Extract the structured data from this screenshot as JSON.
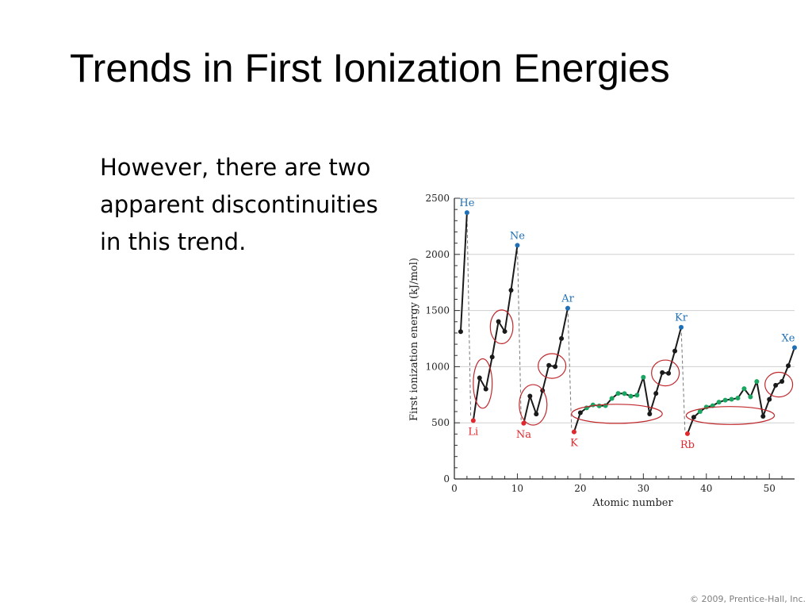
{
  "slide": {
    "title": "Trends in First Ionization Energies",
    "body": "However, there are two apparent discontinuities in this trend.",
    "copyright": "© 2009, Prentice-Hall, Inc."
  },
  "chart_data": {
    "type": "line",
    "xlabel": "Atomic number",
    "ylabel": "First ionization energy (kJ/mol)",
    "xlim": [
      0,
      54
    ],
    "ylim": [
      0,
      2500
    ],
    "xticks": [
      0,
      10,
      20,
      30,
      40,
      50
    ],
    "yticks": [
      0,
      500,
      1000,
      1500,
      2000,
      2500
    ],
    "grid": true,
    "series": [
      {
        "x": [
          1,
          2,
          3,
          4,
          5,
          6,
          7,
          8,
          9,
          10,
          11,
          12,
          13,
          14,
          15,
          16,
          17,
          18,
          19,
          20,
          21,
          22,
          23,
          24,
          25,
          26,
          27,
          28,
          29,
          30,
          31,
          32,
          33,
          34,
          35,
          36,
          37,
          38,
          39,
          40,
          41,
          42,
          43,
          44,
          45,
          46,
          47,
          48,
          49,
          50,
          51,
          52,
          53,
          54
        ],
        "y": [
          1312,
          2372,
          520,
          900,
          801,
          1086,
          1402,
          1314,
          1681,
          2081,
          496,
          738,
          578,
          787,
          1012,
          1000,
          1251,
          1521,
          419,
          590,
          633,
          659,
          651,
          653,
          717,
          762,
          760,
          737,
          746,
          906,
          579,
          762,
          947,
          941,
          1140,
          1351,
          403,
          550,
          600,
          640,
          652,
          684,
          702,
          710,
          720,
          804,
          731,
          868,
          558,
          709,
          834,
          869,
          1008,
          1170
        ],
        "colors": [
          "black",
          "blue",
          "red",
          "black",
          "black",
          "black",
          "black",
          "black",
          "black",
          "blue",
          "red",
          "black",
          "black",
          "black",
          "black",
          "black",
          "black",
          "blue",
          "red",
          "black",
          "green",
          "green",
          "green",
          "green",
          "green",
          "green",
          "green",
          "green",
          "green",
          "green",
          "black",
          "black",
          "black",
          "black",
          "black",
          "blue",
          "red",
          "black",
          "green",
          "green",
          "green",
          "green",
          "green",
          "green",
          "green",
          "green",
          "green",
          "green",
          "black",
          "black",
          "black",
          "black",
          "black",
          "blue"
        ]
      }
    ],
    "annotations": [
      {
        "text": "He",
        "x": 2,
        "y": 2372,
        "color": "blue"
      },
      {
        "text": "Ne",
        "x": 10,
        "y": 2081,
        "color": "blue"
      },
      {
        "text": "Ar",
        "x": 18,
        "y": 1521,
        "color": "blue"
      },
      {
        "text": "Kr",
        "x": 36,
        "y": 1351,
        "color": "blue"
      },
      {
        "text": "Xe",
        "x": 54,
        "y": 1170,
        "color": "blue"
      },
      {
        "text": "Li",
        "x": 3,
        "y": 520,
        "color": "red"
      },
      {
        "text": "Na",
        "x": 11,
        "y": 496,
        "color": "red"
      },
      {
        "text": "K",
        "x": 19,
        "y": 419,
        "color": "red"
      },
      {
        "text": "Rb",
        "x": 37,
        "y": 403,
        "color": "red"
      }
    ],
    "drops": [
      [
        2,
        3
      ],
      [
        10,
        11
      ],
      [
        18,
        19
      ],
      [
        36,
        37
      ]
    ],
    "ellipses": [
      {
        "x": 4.5,
        "y": 850,
        "rx": 1.5,
        "ry": 220
      },
      {
        "x": 7.5,
        "y": 1355,
        "rx": 1.8,
        "ry": 150
      },
      {
        "x": 12.5,
        "y": 660,
        "rx": 2.2,
        "ry": 180
      },
      {
        "x": 15.5,
        "y": 1006,
        "rx": 2.2,
        "ry": 110
      },
      {
        "x": 25.8,
        "y": 580,
        "rx": 7.2,
        "ry": 85
      },
      {
        "x": 33.5,
        "y": 944,
        "rx": 2.2,
        "ry": 115
      },
      {
        "x": 43.8,
        "y": 565,
        "rx": 7.0,
        "ry": 80
      },
      {
        "x": 51.5,
        "y": 840,
        "rx": 2.2,
        "ry": 110
      }
    ],
    "colors": {
      "black": "#1a1a1a",
      "blue": "#1f6fb5",
      "red": "#e0282e",
      "green": "#1aa660",
      "ellipse": "#c0282d",
      "grid": "#cfcfcf",
      "drop": "#777777"
    }
  }
}
